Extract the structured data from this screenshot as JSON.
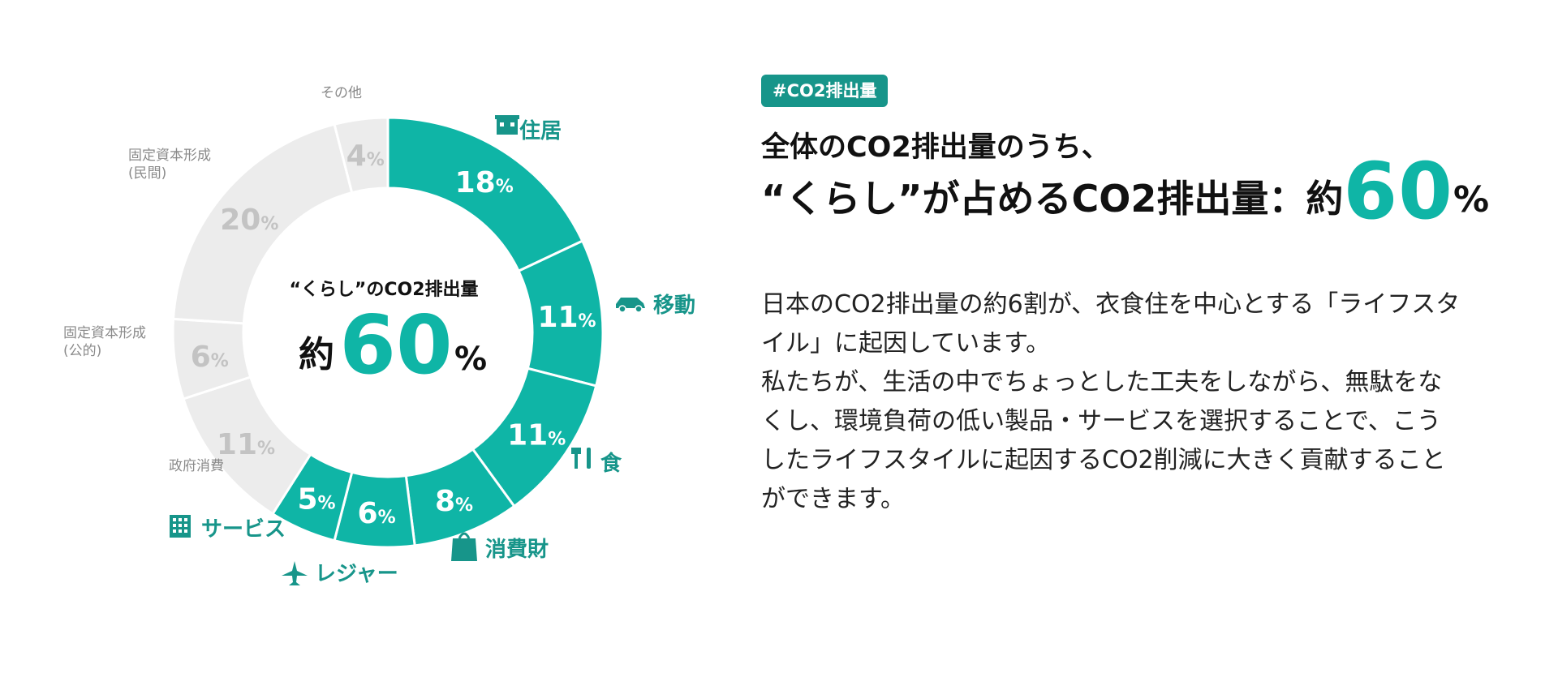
{
  "colors": {
    "teal": "#0fb5a6",
    "teal_dark": "#17958a",
    "grey_slice": "#ececec",
    "grey_text": "#c3c3c3",
    "grey_label": "#8a8a8a"
  },
  "chart_data": {
    "type": "pie",
    "style": "donut",
    "center": {
      "title": "“くらし”のCO2排出量",
      "prefix": "約",
      "value": "60",
      "unit": "%"
    },
    "slices": [
      {
        "label": "住居",
        "value": 18,
        "value_text": "18",
        "unit": "%",
        "group": "くらし",
        "icon": "house-icon"
      },
      {
        "label": "移動",
        "value": 11,
        "value_text": "11",
        "unit": "%",
        "group": "くらし",
        "icon": "car-icon"
      },
      {
        "label": "食",
        "value": 11,
        "value_text": "11",
        "unit": "%",
        "group": "くらし",
        "icon": "fork-knife-icon"
      },
      {
        "label": "消費財",
        "value": 8,
        "value_text": "8",
        "unit": "%",
        "group": "くらし",
        "icon": "shopping-bag-icon"
      },
      {
        "label": "レジャー",
        "value": 6,
        "value_text": "6",
        "unit": "%",
        "group": "くらし",
        "icon": "airplane-icon"
      },
      {
        "label": "サービス",
        "value": 5,
        "value_text": "5",
        "unit": "%",
        "group": "くらし",
        "icon": "building-icon"
      },
      {
        "label": "政府消費",
        "value": 11,
        "value_text": "11",
        "unit": "%",
        "group": "other"
      },
      {
        "label": "固定資本形成\n(公的)",
        "value": 6,
        "value_text": "6",
        "unit": "%",
        "group": "other"
      },
      {
        "label": "固定資本形成\n(民間)",
        "value": 20,
        "value_text": "20",
        "unit": "%",
        "group": "other"
      },
      {
        "label": "その他",
        "value": 4,
        "value_text": "4",
        "unit": "%",
        "group": "other"
      }
    ]
  },
  "tag": "#CO2排出量",
  "heading": {
    "line1": "全体のCO2排出量のうち、",
    "line2_text": "“くらし”が占めるCO2排出量：約",
    "line2_value": "60",
    "line2_unit": "%"
  },
  "body_lines": [
    "日本のCO2排出量の約6割が、衣食住を中心とする「ライフスタ",
    "イル」に起因しています。",
    "私たちが、生活の中でちょっとした工夫をしながら、無駄をな",
    "くし、環境負荷の低い製品・サービスを選択することで、こう",
    "したライフスタイルに起因するCO2削減に大きく貢献すること",
    "ができます。"
  ]
}
